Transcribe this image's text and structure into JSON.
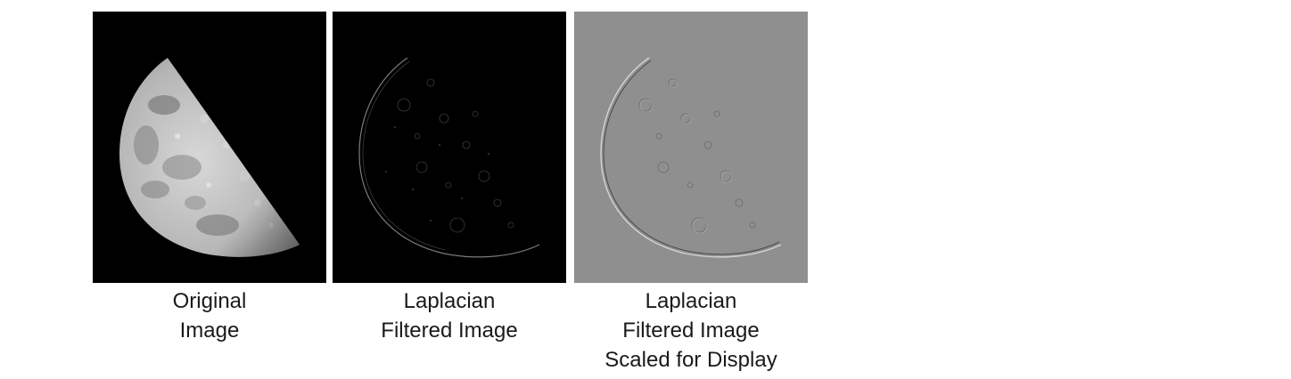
{
  "figure": {
    "panels": [
      {
        "id": "original",
        "caption_lines": [
          "Original",
          "Image"
        ]
      },
      {
        "id": "laplacian",
        "caption_lines": [
          "Laplacian",
          "Filtered Image"
        ]
      },
      {
        "id": "scaled",
        "caption_lines": [
          "Laplacian",
          "Filtered Image",
          "Scaled for Display"
        ]
      }
    ]
  },
  "colors": {
    "background": "#ffffff",
    "panel_dark": "#000000",
    "panel_gray": "#8f8f8f",
    "caption_text": "#1a1a1a"
  }
}
